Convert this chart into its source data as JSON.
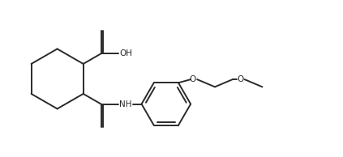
{
  "bg_color": "#ffffff",
  "line_color": "#2a2a2a",
  "lw": 1.4,
  "figsize": [
    4.23,
    1.94
  ],
  "dpi": 100,
  "xlim": [
    0,
    10
  ],
  "ylim": [
    0,
    4.58
  ]
}
